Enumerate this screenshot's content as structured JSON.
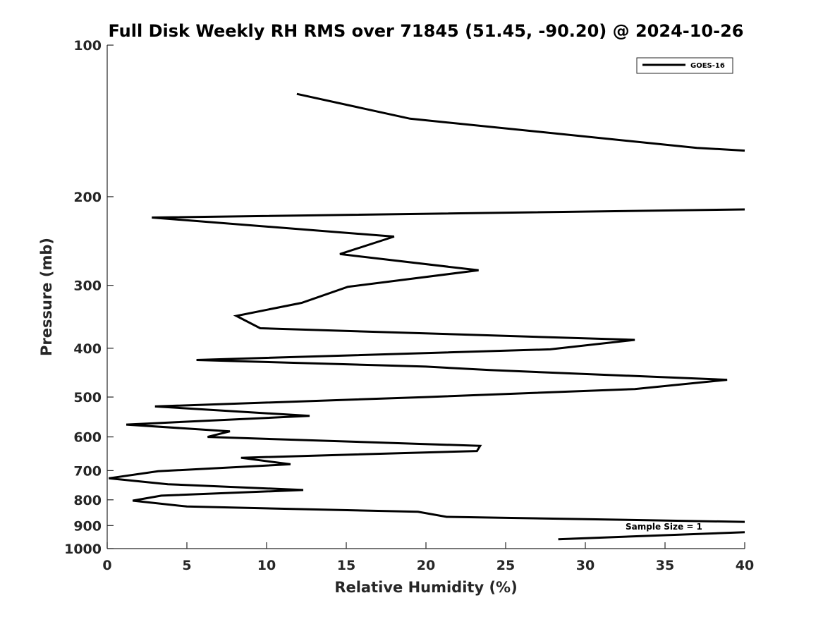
{
  "chart_data": {
    "type": "line",
    "title": "Full Disk Weekly RH RMS over 71845 (51.45, -90.20) @ 2024-10-26",
    "xlabel": "Relative Humidity (%)",
    "ylabel": "Pressure (mb)",
    "xlim": [
      0,
      40
    ],
    "ylim": [
      100,
      1000
    ],
    "yscale": "log",
    "y_reversed": true,
    "grid": false,
    "legend_position": "top-right",
    "xticks": [
      0,
      5,
      10,
      15,
      20,
      25,
      30,
      35,
      40
    ],
    "yticks": [
      100,
      200,
      300,
      400,
      500,
      600,
      700,
      800,
      900,
      1000
    ],
    "annotation": "Sample Size = 1",
    "series": [
      {
        "name": "GOES-16",
        "color": "#000000",
        "segments": [
          [
            {
              "x": 11.9,
              "p": 125
            },
            {
              "x": 19.0,
              "p": 140
            },
            {
              "x": 37.0,
              "p": 160
            },
            {
              "x": 40.0,
              "p": 162
            }
          ],
          [
            {
              "x": 40.0,
              "p": 212
            },
            {
              "x": 2.8,
              "p": 220
            },
            {
              "x": 18.0,
              "p": 240
            },
            {
              "x": 14.6,
              "p": 260
            },
            {
              "x": 23.3,
              "p": 280
            },
            {
              "x": 15.1,
              "p": 302
            },
            {
              "x": 12.2,
              "p": 325
            },
            {
              "x": 8.1,
              "p": 345
            },
            {
              "x": 9.6,
              "p": 365
            },
            {
              "x": 33.1,
              "p": 385
            },
            {
              "x": 27.8,
              "p": 402
            },
            {
              "x": 5.6,
              "p": 422
            },
            {
              "x": 20.0,
              "p": 435
            },
            {
              "x": 24.0,
              "p": 442
            },
            {
              "x": 38.9,
              "p": 462
            },
            {
              "x": 33.1,
              "p": 482
            },
            {
              "x": 20.0,
              "p": 500
            },
            {
              "x": 3.0,
              "p": 522
            },
            {
              "x": 12.7,
              "p": 545
            },
            {
              "x": 1.2,
              "p": 567
            },
            {
              "x": 7.7,
              "p": 585
            },
            {
              "x": 6.3,
              "p": 600
            },
            {
              "x": 23.4,
              "p": 625
            },
            {
              "x": 23.2,
              "p": 640
            },
            {
              "x": 8.4,
              "p": 660
            },
            {
              "x": 11.5,
              "p": 680
            },
            {
              "x": 3.2,
              "p": 702
            },
            {
              "x": 0.1,
              "p": 725
            },
            {
              "x": 3.8,
              "p": 745
            },
            {
              "x": 12.3,
              "p": 765
            },
            {
              "x": 3.4,
              "p": 785
            },
            {
              "x": 1.6,
              "p": 803
            },
            {
              "x": 5.0,
              "p": 825
            },
            {
              "x": 19.5,
              "p": 845
            },
            {
              "x": 21.3,
              "p": 865
            },
            {
              "x": 40.0,
              "p": 885
            }
          ],
          [
            {
              "x": 40.0,
              "p": 928
            },
            {
              "x": 28.3,
              "p": 958
            }
          ]
        ]
      }
    ]
  }
}
